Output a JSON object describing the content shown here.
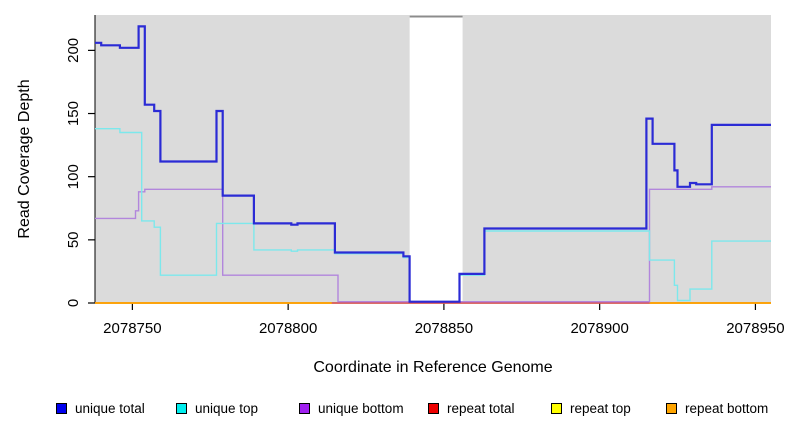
{
  "chart_data": {
    "type": "line",
    "subtype": "step-coverage",
    "title": "",
    "xlabel": "Coordinate in Reference Genome",
    "ylabel": "Read Coverage Depth",
    "xlim": [
      2078738,
      2078955
    ],
    "ylim": [
      0,
      228
    ],
    "x_ticks": [
      2078750,
      2078800,
      2078850,
      2078900,
      2078950
    ],
    "y_ticks": [
      0,
      50,
      100,
      150,
      200
    ],
    "grid": false,
    "plot_bg_color": "#DBDBDB",
    "axis_color": "#000000",
    "gap_region": {
      "x_start": 2078839,
      "x_end": 2078856,
      "fill": "#FFFFFF",
      "top_border_color": "#8C8C8C"
    },
    "legend_position": "bottom",
    "series": [
      {
        "id": "unique-total",
        "label": "unique total",
        "legend_color": "#0000EE",
        "line_color": "#2B2BD5",
        "line_width": 2.2,
        "points": [
          [
            2078738,
            206
          ],
          [
            2078740,
            204
          ],
          [
            2078746,
            202
          ],
          [
            2078752,
            219
          ],
          [
            2078754,
            157
          ],
          [
            2078757,
            152
          ],
          [
            2078759,
            112
          ],
          [
            2078777,
            152
          ],
          [
            2078779,
            85
          ],
          [
            2078789,
            63
          ],
          [
            2078801,
            62
          ],
          [
            2078803,
            63
          ],
          [
            2078815,
            40
          ],
          [
            2078837,
            37
          ],
          [
            2078839,
            1
          ],
          [
            2078855,
            23
          ],
          [
            2078863,
            59
          ],
          [
            2078915,
            146
          ],
          [
            2078917,
            126
          ],
          [
            2078924,
            105
          ],
          [
            2078925,
            92
          ],
          [
            2078929,
            95
          ],
          [
            2078931,
            94
          ],
          [
            2078936,
            141
          ],
          [
            2078955,
            141
          ]
        ]
      },
      {
        "id": "unique-top",
        "label": "unique top",
        "legend_color": "#00EEEE",
        "line_color": "#7CE8EC",
        "line_width": 1.4,
        "points": [
          [
            2078738,
            138
          ],
          [
            2078746,
            135
          ],
          [
            2078753,
            65
          ],
          [
            2078757,
            60
          ],
          [
            2078759,
            22
          ],
          [
            2078777,
            63
          ],
          [
            2078789,
            42
          ],
          [
            2078801,
            41
          ],
          [
            2078803,
            42
          ],
          [
            2078815,
            39
          ],
          [
            2078837,
            36
          ],
          [
            2078839,
            1
          ],
          [
            2078855,
            22
          ],
          [
            2078863,
            57
          ],
          [
            2078916,
            34
          ],
          [
            2078924,
            14
          ],
          [
            2078925,
            2
          ],
          [
            2078929,
            11
          ],
          [
            2078936,
            49
          ],
          [
            2078955,
            49
          ]
        ]
      },
      {
        "id": "unique-bottom",
        "label": "unique bottom",
        "legend_color": "#A020F0",
        "line_color": "#B286DC",
        "line_width": 1.4,
        "points": [
          [
            2078738,
            67
          ],
          [
            2078751,
            73
          ],
          [
            2078752,
            88
          ],
          [
            2078754,
            90
          ],
          [
            2078779,
            22
          ],
          [
            2078816,
            1
          ],
          [
            2078916,
            90
          ],
          [
            2078936,
            92
          ],
          [
            2078955,
            92
          ]
        ]
      },
      {
        "id": "repeat-total",
        "label": "repeat total",
        "legend_color": "#EE0000",
        "line_color": "#D13B5F",
        "line_width": 1.6,
        "points": [
          [
            2078738,
            0
          ],
          [
            2078955,
            0
          ]
        ]
      },
      {
        "id": "repeat-top",
        "label": "repeat top",
        "legend_color": "#FFFF00",
        "line_color": "#FFFF00",
        "line_width": 1.4,
        "points": [
          [
            2078738,
            0
          ],
          [
            2078955,
            0
          ]
        ]
      },
      {
        "id": "repeat-bottom",
        "label": "repeat bottom",
        "legend_color": "#FFA500",
        "line_color": "#FFA500",
        "line_width": 1.8,
        "value": 0,
        "segments": [
          [
            2078738,
            2078814
          ],
          [
            2078916,
            2078955
          ]
        ]
      }
    ],
    "draw_order": [
      "repeat-top",
      "repeat-total",
      "repeat-bottom",
      "unique-bottom",
      "unique-top",
      "unique-total"
    ]
  }
}
